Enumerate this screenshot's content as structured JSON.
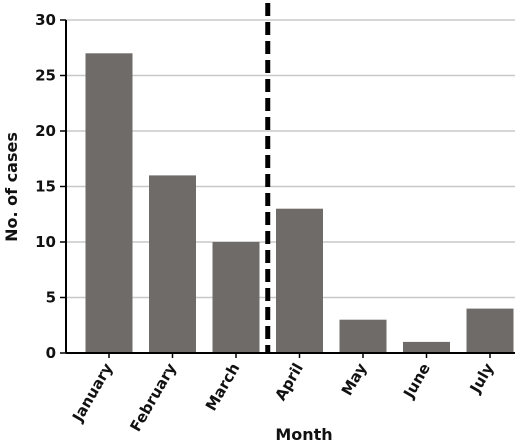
{
  "chart_data": {
    "type": "bar",
    "title": "",
    "xlabel": "Month",
    "ylabel": "No. of cases",
    "categories": [
      "January",
      "February",
      "March",
      "April",
      "May",
      "June",
      "July"
    ],
    "values": [
      27,
      16,
      10,
      13,
      3,
      1,
      4
    ],
    "ylim": [
      0,
      30
    ],
    "yticks": [
      "0",
      "5",
      "10",
      "15",
      "20",
      "25",
      "30"
    ],
    "grid": true,
    "legend": "none",
    "divider_after_category": "March",
    "bar_color": "#6e6b69",
    "divider_color": "#000000",
    "grid_color": "#c8c8c8"
  }
}
